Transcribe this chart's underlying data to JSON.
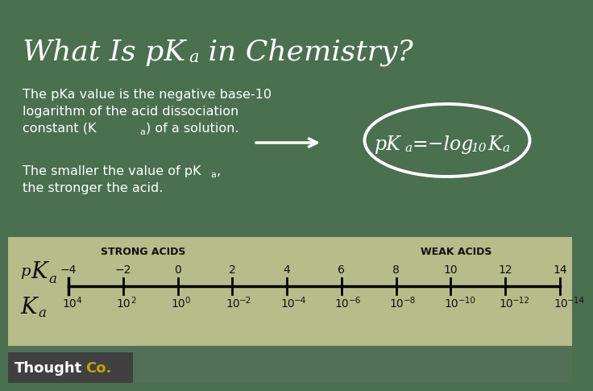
{
  "bg_green": "#4a7050",
  "bg_tan": "#b8bc8a",
  "bg_mid_green": "#527055",
  "title_text": "What Is pK",
  "title_sub": "a",
  "title_end": " in Chemistry?",
  "body1_line1": "The pKa value is the negative base-10",
  "body1_line2": "logarithm of the acid dissociation",
  "body1_line3_pre": "constant (K",
  "body1_line3_post": ") of a solution.",
  "body2_line1_pre": "The smaller the value of pK",
  "body2_line1_post": ",",
  "body2_line2": "the stronger the acid.",
  "formula_pK": "pK",
  "formula_a1": "a",
  "formula_eq": "=−log",
  "formula_10": "10",
  "formula_K": "K",
  "formula_a2": "a",
  "strong_acids": "STRONG ACIDS",
  "weak_acids": "WEAK ACIDS",
  "pka_values": [
    "−4",
    "−2",
    "0",
    "2",
    "4",
    "6",
    "8",
    "10",
    "12",
    "14"
  ],
  "ka_exponents": [
    "4",
    "2",
    "0",
    "−2",
    "−4",
    "−6",
    "−8",
    "−10",
    "−12",
    "−14"
  ],
  "white": "#ffffff",
  "black": "#111111",
  "thoughtco_dark": "#404040",
  "thoughtco_word": "Thought",
  "thoughtco_co": "Co.",
  "thoughtco_co_color": "#c8a000"
}
